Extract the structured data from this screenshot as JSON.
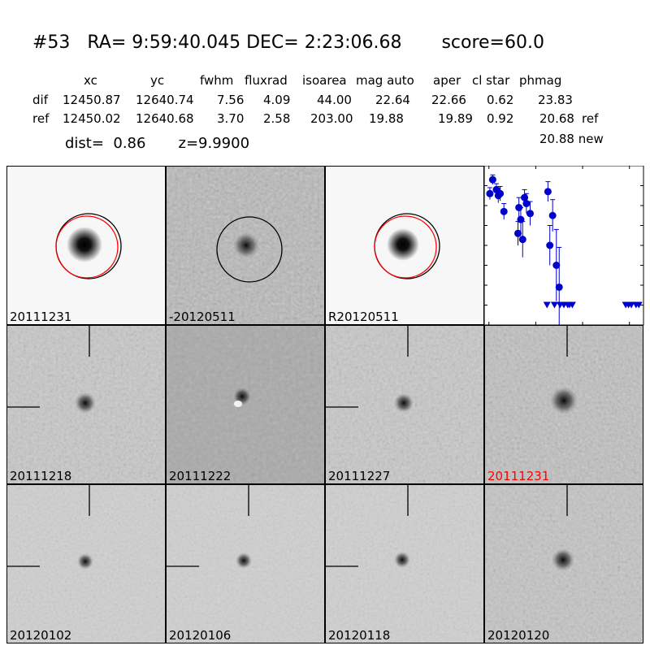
{
  "title": "#53   RA= 9:59:40.045 DEC= 2:23:06.68       score=60.0",
  "table": {
    "headers": [
      "xc",
      "yc",
      "fwhm",
      "fluxrad",
      "isoarea",
      "mag auto",
      "aper",
      "cl star",
      "phmag"
    ],
    "rows": [
      {
        "label": "dif",
        "values": [
          "12450.87",
          "12640.74",
          "7.56",
          "4.09",
          "44.00",
          "22.64",
          "22.66",
          "0.62",
          "23.83"
        ],
        "suffix": ""
      },
      {
        "label": "ref",
        "values": [
          "12450.02",
          "12640.68",
          "3.70",
          "2.58",
          "203.00",
          "19.88",
          "19.89",
          "0.92",
          "20.68"
        ],
        "suffix": "ref"
      }
    ],
    "extra": "20.88 new"
  },
  "dist_line": "dist=  0.86       z=9.9900",
  "panels": {
    "top": [
      "20111231",
      "-20120511",
      "R20120511"
    ],
    "row2": [
      "20111218",
      "20111222",
      "20111227",
      "20111231"
    ],
    "row3": [
      "20120102",
      "20120106",
      "20120118",
      "20120120"
    ]
  },
  "colors": {
    "marker": "#0000cc",
    "ref_circle": "#ff0000",
    "highlight": "#ff0000"
  },
  "chart_data": {
    "type": "scatter",
    "title": "",
    "xlabel": "",
    "ylabel": "",
    "xlim": [
      -5,
      165
    ],
    "ylim": [
      26.0,
      22.0
    ],
    "y_inverted": true,
    "xticks": [
      "0",
      "50",
      "100",
      "150"
    ],
    "yticks": [
      "22.0",
      "22.5",
      "23.0",
      "23.5",
      "24.0",
      "24.5",
      "25.0",
      "25.5",
      "26.0"
    ],
    "grid": false,
    "series": [
      {
        "kind": "detections",
        "points": [
          {
            "x": 1,
            "y": 22.7,
            "err": 0.15
          },
          {
            "x": 4,
            "y": 22.35,
            "err": 0.12
          },
          {
            "x": 8,
            "y": 22.6,
            "err": 0.15
          },
          {
            "x": 10,
            "y": 22.75,
            "err": 0.18
          },
          {
            "x": 12,
            "y": 22.7,
            "err": 0.18
          },
          {
            "x": 16,
            "y": 23.15,
            "err": 0.2
          },
          {
            "x": 31,
            "y": 23.7,
            "err": 0.3
          },
          {
            "x": 32,
            "y": 23.05,
            "err": 0.25
          },
          {
            "x": 34,
            "y": 23.35,
            "err": 0.3
          },
          {
            "x": 36,
            "y": 23.85,
            "err": 0.45
          },
          {
            "x": 38,
            "y": 22.8,
            "err": 0.2
          },
          {
            "x": 40,
            "y": 22.95,
            "err": 0.25
          },
          {
            "x": 44,
            "y": 23.2,
            "err": 0.3
          },
          {
            "x": 63,
            "y": 22.65,
            "err": 0.25
          },
          {
            "x": 65,
            "y": 24.0,
            "err": 0.5
          },
          {
            "x": 68,
            "y": 23.25,
            "err": 0.4
          },
          {
            "x": 72,
            "y": 24.5,
            "err": 0.9
          },
          {
            "x": 75,
            "y": 25.05,
            "err": 1.0
          }
        ]
      },
      {
        "kind": "upper_limits",
        "points": [
          {
            "x": 62,
            "y": 25.5
          },
          {
            "x": 70,
            "y": 25.5
          },
          {
            "x": 76,
            "y": 25.5
          },
          {
            "x": 80,
            "y": 25.5
          },
          {
            "x": 84,
            "y": 25.5
          },
          {
            "x": 86,
            "y": 25.5
          },
          {
            "x": 89,
            "y": 25.5
          },
          {
            "x": 146,
            "y": 25.5
          },
          {
            "x": 149,
            "y": 25.5
          },
          {
            "x": 152,
            "y": 25.5
          },
          {
            "x": 157,
            "y": 25.5
          },
          {
            "x": 160,
            "y": 25.5
          }
        ]
      }
    ]
  }
}
